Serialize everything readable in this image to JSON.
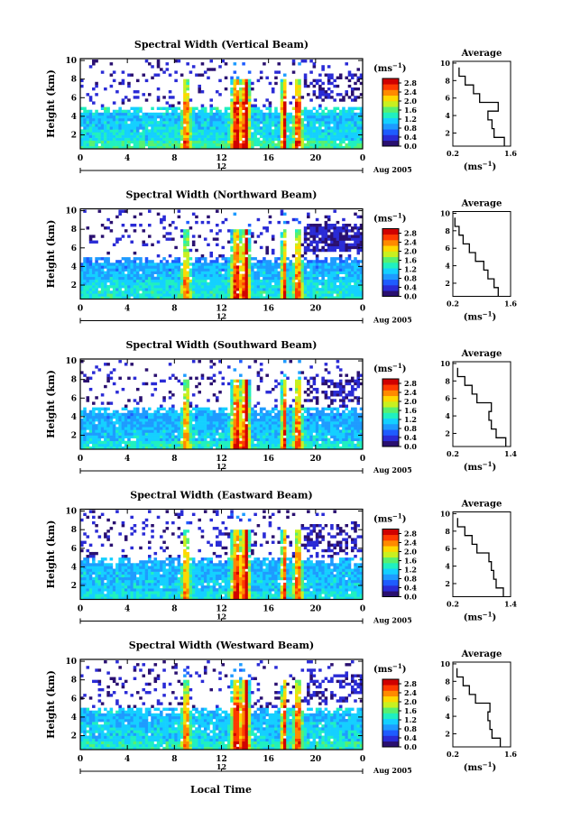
{
  "figure": {
    "xlabel": "Local Time",
    "date_label": "Aug 2005",
    "noon_label": "12",
    "ylabel": "Height (km)",
    "colorbar_unit": "(ms",
    "colorbar_unit_exp": "−1",
    "avg_title": "Average",
    "avg_unit": "(ms",
    "avg_unit_exp": "−1",
    "colors": {
      "background": "#ffffff",
      "frame": "#000000",
      "scale": [
        "#2a1070",
        "#2a2bd6",
        "#1e5cff",
        "#1e9bff",
        "#14d0ff",
        "#20f0c0",
        "#58f070",
        "#c8f020",
        "#ffd800",
        "#ff8a00",
        "#ff3a00",
        "#d00000"
      ],
      "profile": "#000000"
    }
  },
  "chart_data": [
    {
      "type": "heatmap",
      "title": "Spectral Width (Vertical Beam)",
      "xlabel": "Local Time",
      "ylabel": "Height (km)",
      "xlim": [
        0,
        24
      ],
      "ylim": [
        0.5,
        10.2
      ],
      "xticks": [
        "0",
        "4",
        "8",
        "12",
        "16",
        "20",
        "0"
      ],
      "yticks": [
        "2",
        "4",
        "6",
        "8",
        "10"
      ],
      "colorbar": {
        "unit": "ms-1",
        "ticks": [
          "0.0",
          "0.4",
          "0.8",
          "1.2",
          "1.6",
          "2.0",
          "2.4",
          "2.8"
        ],
        "range": [
          0,
          3.0
        ]
      },
      "mean_heights_km": [
        1,
        2,
        3,
        4,
        5,
        6,
        7,
        8,
        9
      ],
      "mean_width_ms": [
        1.45,
        1.2,
        1.15,
        1.05,
        1.3,
        0.85,
        0.7,
        0.5,
        0.35
      ],
      "average_profile": {
        "title": "Average",
        "xticks": [
          "0.2",
          "1.6"
        ],
        "xlim": [
          0.2,
          1.6
        ],
        "yticks": [
          "2",
          "4",
          "6",
          "8",
          "10"
        ]
      }
    },
    {
      "type": "heatmap",
      "title": "Spectral Width (Northward Beam)",
      "xlabel": "Local Time",
      "ylabel": "Height (km)",
      "xlim": [
        0,
        24
      ],
      "ylim": [
        0.5,
        10.2
      ],
      "xticks": [
        "0",
        "4",
        "8",
        "12",
        "16",
        "20",
        "0"
      ],
      "yticks": [
        "2",
        "4",
        "6",
        "8",
        "10"
      ],
      "colorbar": {
        "unit": "ms-1",
        "ticks": [
          "0.0",
          "0.4",
          "0.8",
          "1.2",
          "1.6",
          "2.0",
          "2.4",
          "2.8"
        ],
        "range": [
          0,
          3.0
        ]
      },
      "mean_heights_km": [
        1,
        2,
        3,
        4,
        5,
        6,
        7,
        8,
        9
      ],
      "mean_width_ms": [
        1.3,
        1.2,
        1.05,
        0.95,
        0.75,
        0.6,
        0.45,
        0.35,
        0.25
      ],
      "average_profile": {
        "title": "Average",
        "xticks": [
          "0.2",
          "1.6"
        ],
        "xlim": [
          0.2,
          1.6
        ],
        "yticks": [
          "2",
          "4",
          "6",
          "8",
          "10"
        ]
      }
    },
    {
      "type": "heatmap",
      "title": "Spectral Width (Southward Beam)",
      "xlabel": "Local Time",
      "ylabel": "Height (km)",
      "xlim": [
        0,
        24
      ],
      "ylim": [
        0.5,
        10.2
      ],
      "xticks": [
        "0",
        "4",
        "8",
        "12",
        "16",
        "20",
        "0"
      ],
      "yticks": [
        "2",
        "4",
        "6",
        "8",
        "10"
      ],
      "colorbar": {
        "unit": "ms-1",
        "ticks": [
          "0.0",
          "0.4",
          "0.8",
          "1.2",
          "1.6",
          "2.0",
          "2.4",
          "2.8"
        ],
        "range": [
          0,
          3.0
        ]
      },
      "mean_heights_km": [
        1,
        2,
        3,
        4,
        5,
        6,
        7,
        8,
        9
      ],
      "mean_width_ms": [
        1.3,
        1.1,
        1.0,
        0.95,
        1.0,
        0.7,
        0.6,
        0.45,
        0.3
      ],
      "average_profile": {
        "title": "Average",
        "xticks": [
          "0.2",
          "1.4"
        ],
        "xlim": [
          0.2,
          1.4
        ],
        "yticks": [
          "2",
          "4",
          "6",
          "8",
          "10"
        ]
      }
    },
    {
      "type": "heatmap",
      "title": "Spectral Width (Eastward Beam)",
      "xlabel": "Local Time",
      "ylabel": "Height (km)",
      "xlim": [
        0,
        24
      ],
      "ylim": [
        0.5,
        10.2
      ],
      "xticks": [
        "0",
        "4",
        "8",
        "12",
        "16",
        "20",
        "0"
      ],
      "yticks": [
        "2",
        "4",
        "6",
        "8",
        "10"
      ],
      "colorbar": {
        "unit": "ms-1",
        "ticks": [
          "0.0",
          "0.4",
          "0.8",
          "1.2",
          "1.6",
          "2.0",
          "2.4",
          "2.8"
        ],
        "range": [
          0,
          3.0
        ]
      },
      "mean_heights_km": [
        1,
        2,
        3,
        4,
        5,
        6,
        7,
        8,
        9
      ],
      "mean_width_ms": [
        1.25,
        1.1,
        1.05,
        1.0,
        0.95,
        0.7,
        0.6,
        0.45,
        0.3
      ],
      "average_profile": {
        "title": "Average",
        "xticks": [
          "0.2",
          "1.4"
        ],
        "xlim": [
          0.2,
          1.4
        ],
        "yticks": [
          "2",
          "4",
          "6",
          "8",
          "10"
        ]
      }
    },
    {
      "type": "heatmap",
      "title": "Spectral Width (Westward Beam)",
      "xlabel": "Local Time",
      "ylabel": "Height (km)",
      "xlim": [
        0,
        24
      ],
      "ylim": [
        0.5,
        10.2
      ],
      "xticks": [
        "0",
        "4",
        "8",
        "12",
        "16",
        "20",
        "0"
      ],
      "yticks": [
        "2",
        "4",
        "6",
        "8",
        "10"
      ],
      "colorbar": {
        "unit": "ms-1",
        "ticks": [
          "0.0",
          "0.4",
          "0.8",
          "1.2",
          "1.6",
          "2.0",
          "2.4",
          "2.8"
        ],
        "range": [
          0,
          3.0
        ]
      },
      "mean_heights_km": [
        1,
        2,
        3,
        4,
        5,
        6,
        7,
        8,
        9
      ],
      "mean_width_ms": [
        1.35,
        1.15,
        1.1,
        1.05,
        1.1,
        0.75,
        0.6,
        0.45,
        0.3
      ],
      "average_profile": {
        "title": "Average",
        "xticks": [
          "0.2",
          "1.6"
        ],
        "xlim": [
          0.2,
          1.6
        ],
        "yticks": [
          "2",
          "4",
          "6",
          "8",
          "10"
        ]
      }
    }
  ]
}
